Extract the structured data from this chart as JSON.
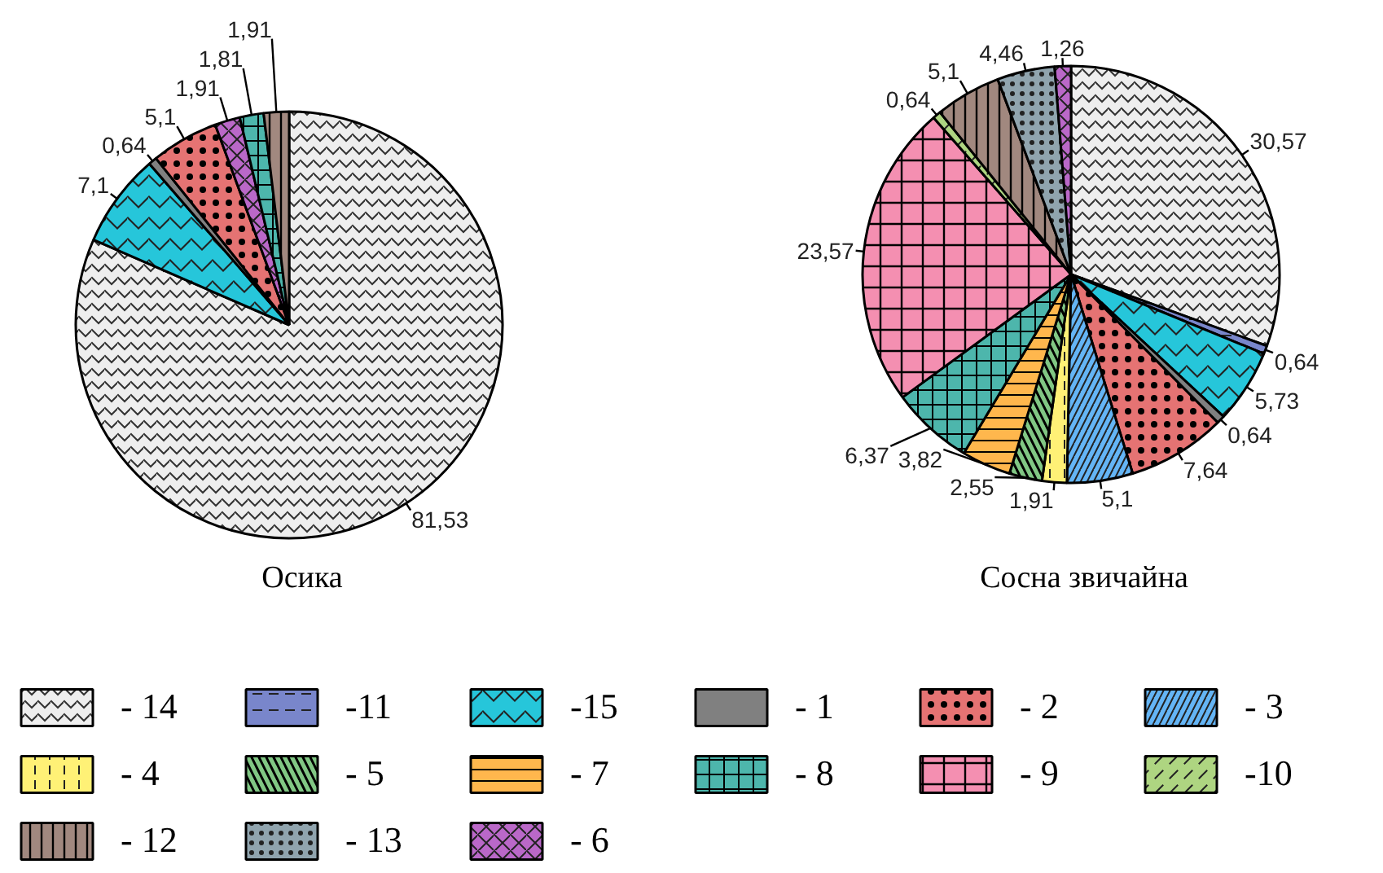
{
  "chart_data": [
    {
      "type": "pie",
      "title": "Осика",
      "values": [
        81.53,
        7.1,
        0.64,
        5.1,
        1.91,
        1.81,
        1.91
      ],
      "value_labels": [
        "81,53",
        "7,1",
        "0,64",
        "5,1",
        "1,91",
        "1,81",
        "1,91"
      ],
      "colors": [
        "#eeeeee",
        "#26c6da",
        "#808080",
        "#e57373",
        "#ba68c8",
        "#4db6ac",
        "#a1887f"
      ]
    },
    {
      "type": "pie",
      "title": "Сосна звичайна",
      "categories": [
        "- 14",
        "-11",
        "-15",
        "- 1",
        "- 2",
        "- 3",
        "- 4",
        "- 5",
        "- 7",
        "- 8",
        "- 9",
        "-10",
        "- 12",
        "- 13",
        "- 6"
      ],
      "values": [
        30.57,
        0.64,
        5.73,
        0.64,
        7.64,
        5.1,
        1.91,
        2.55,
        3.82,
        6.37,
        23.57,
        0.64,
        5.1,
        4.46,
        1.26
      ],
      "value_labels": [
        "30,57",
        "0,64",
        "5,73",
        "0,64",
        "7,64",
        "5,1",
        "1,91",
        "2,55",
        "3,82",
        "6,37",
        "23,57",
        "0,64",
        "5,1",
        "4,46",
        "1,26"
      ],
      "colors": [
        "#eeeeee",
        "#7986cb",
        "#26c6da",
        "#808080",
        "#e57373",
        "#64b5f6",
        "#fff176",
        "#81c784",
        "#ffb74d",
        "#4db6ac",
        "#f48fb1",
        "#aed581",
        "#a1887f",
        "#90a4ae",
        "#ba68c8"
      ],
      "legend": "bottom"
    }
  ]
}
